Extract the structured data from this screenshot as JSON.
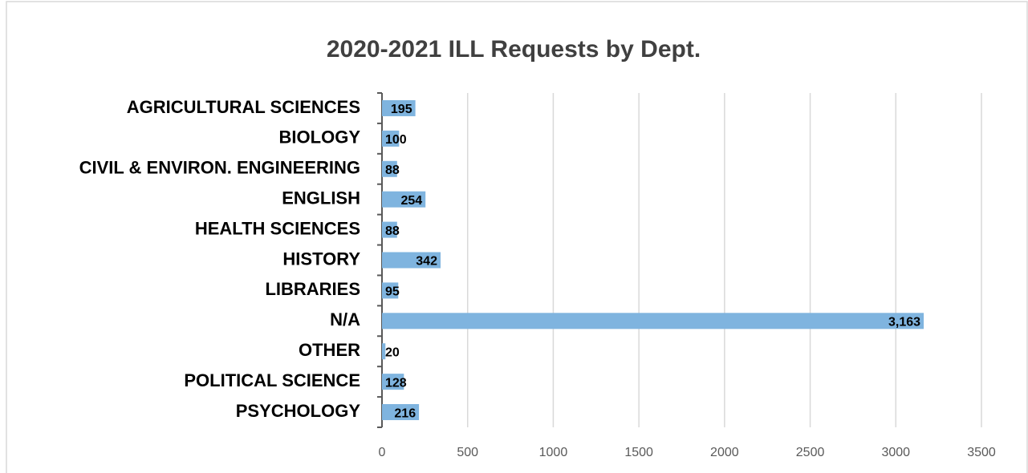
{
  "chart_data": {
    "type": "hbar",
    "title": "2020-2021 ILL Requests by Dept.",
    "categories": [
      "AGRICULTURAL SCIENCES",
      "BIOLOGY",
      "CIVIL & ENVIRON. ENGINEERING",
      "ENGLISH",
      "HEALTH SCIENCES",
      "HISTORY",
      "LIBRARIES",
      "N/A",
      "OTHER",
      "POLITICAL SCIENCE",
      "PSYCHOLOGY"
    ],
    "values": [
      195,
      100,
      88,
      254,
      88,
      342,
      95,
      3163,
      20,
      128,
      216
    ],
    "value_labels": [
      "195",
      "100",
      "88",
      "254",
      "88",
      "342",
      "95",
      "3,163",
      "20",
      "128",
      "216"
    ],
    "color": "#7fb4df",
    "xlim": [
      0,
      3500
    ],
    "xticks": [
      0,
      500,
      1000,
      1500,
      2000,
      2500,
      3000,
      3500
    ],
    "grid": true
  }
}
